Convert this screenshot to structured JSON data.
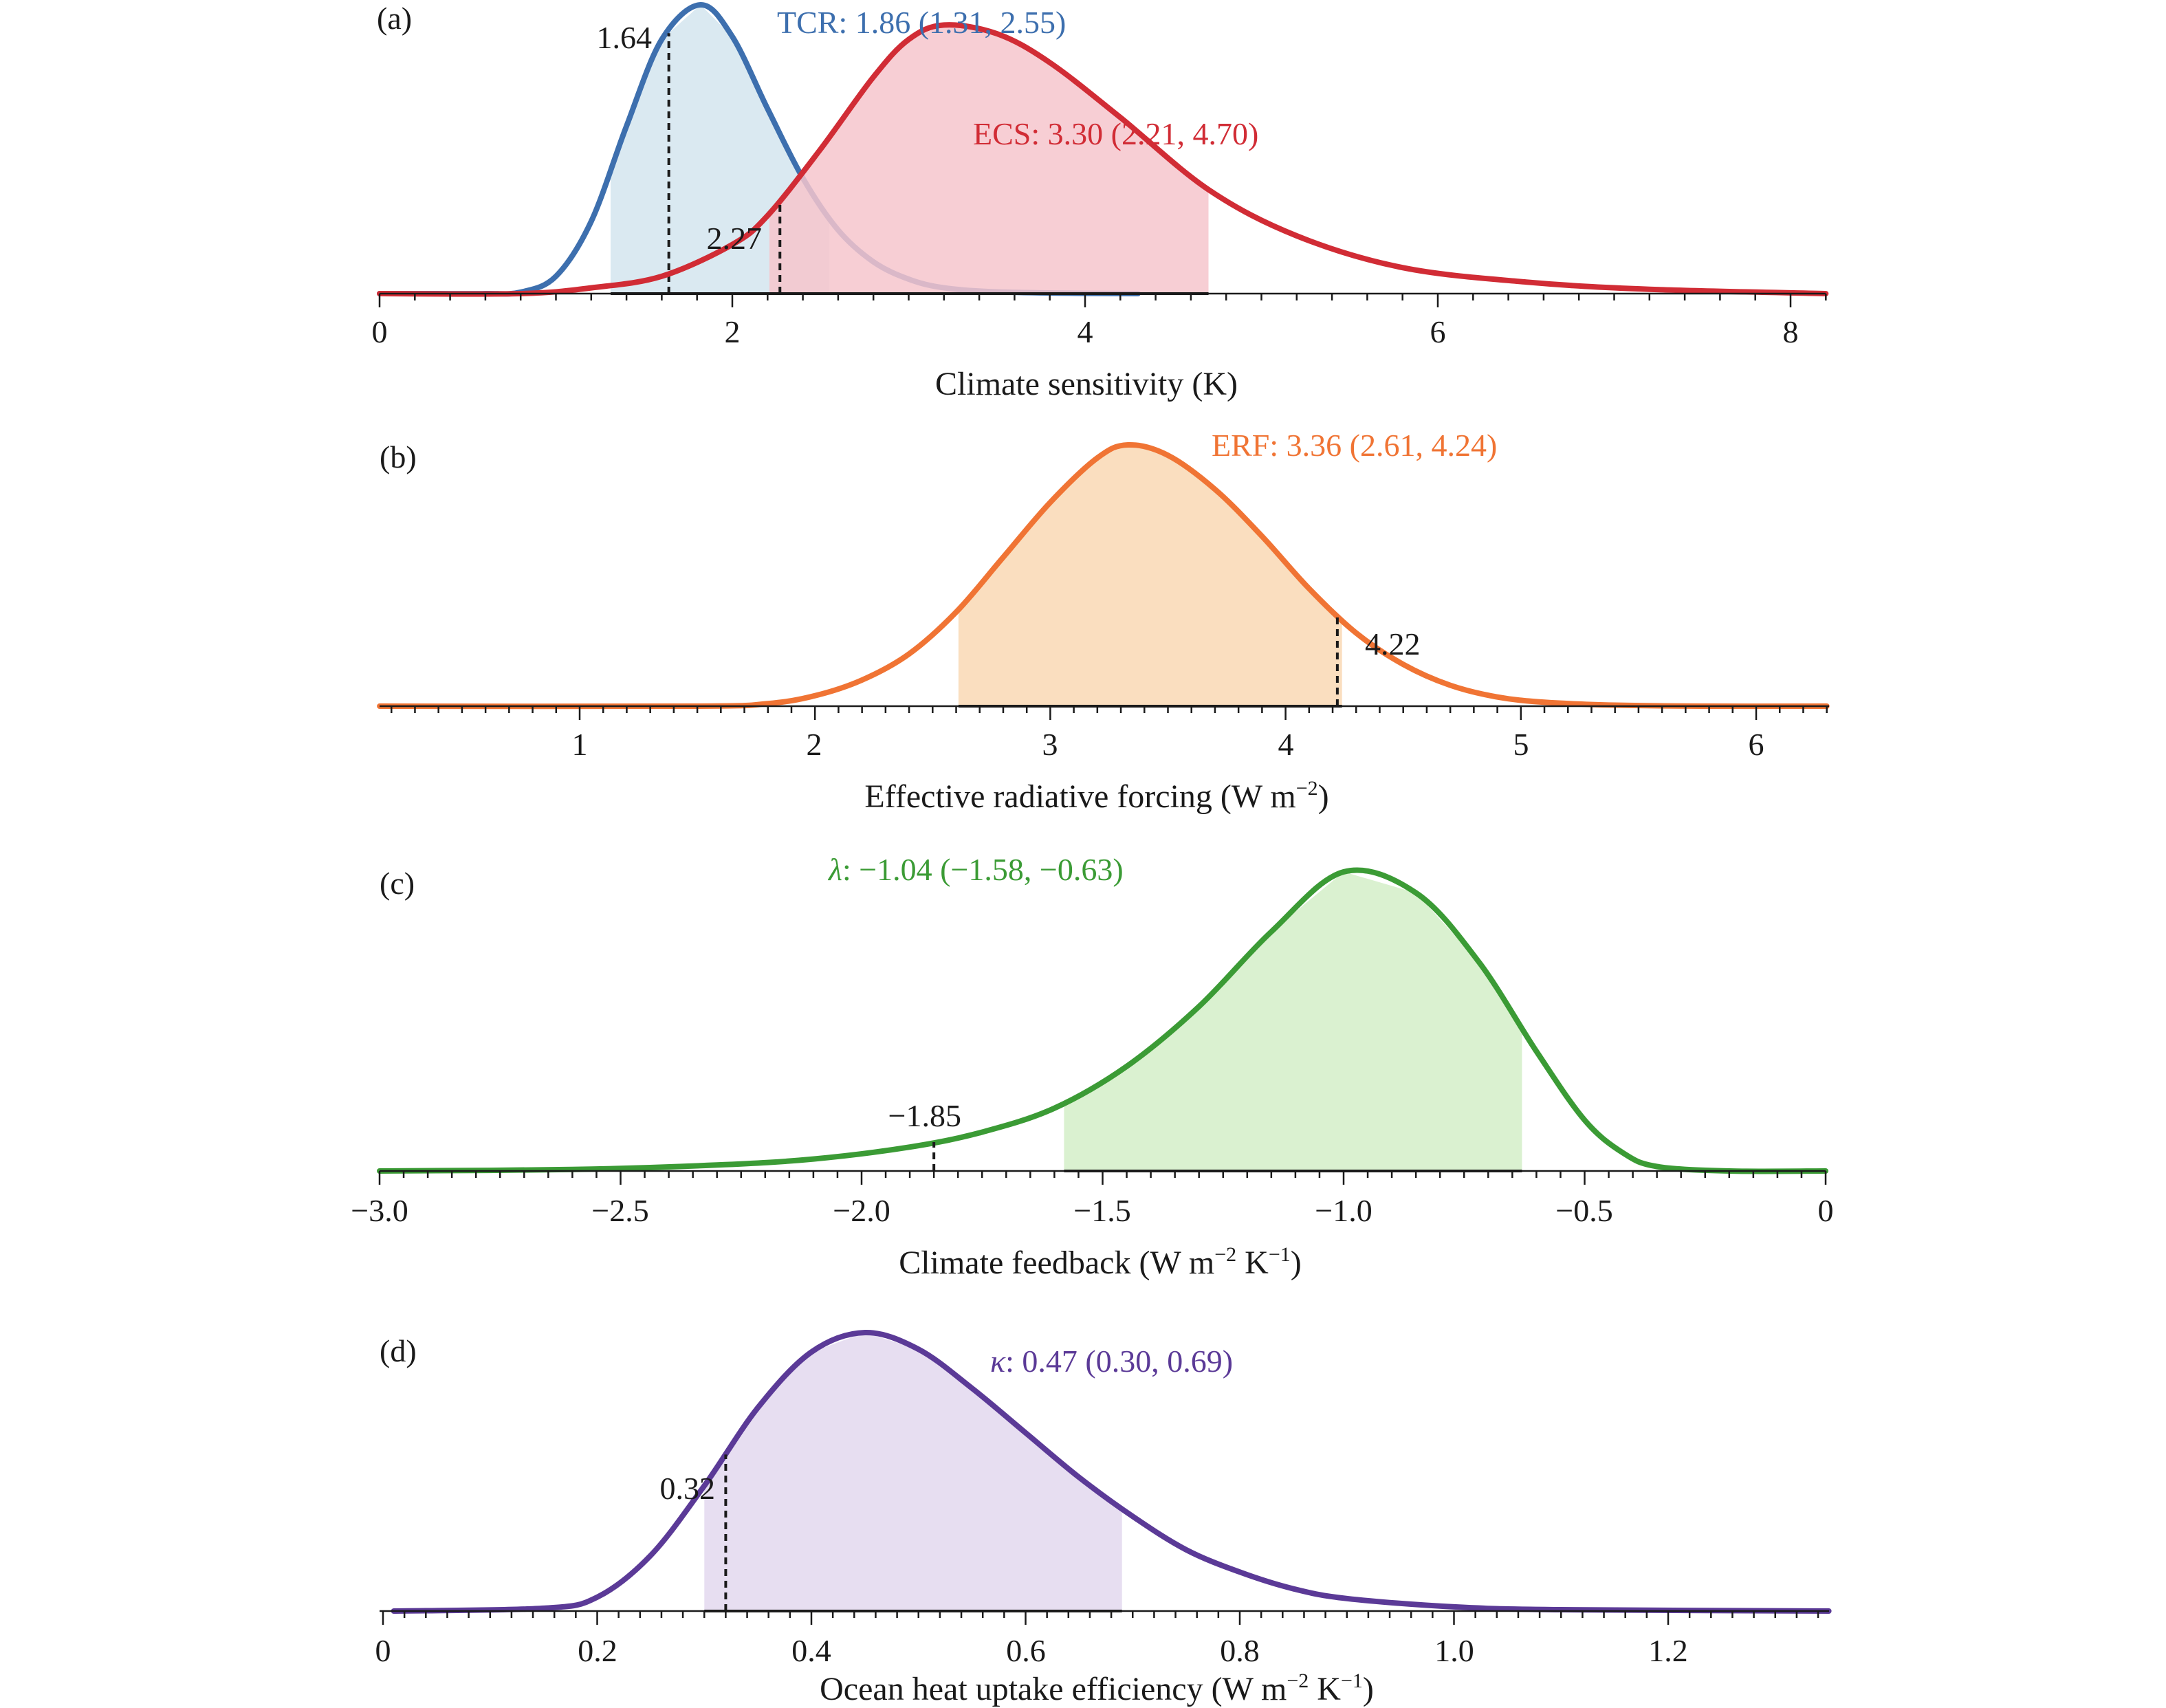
{
  "chart_data": [
    {
      "panel": "(a)",
      "type": "area",
      "xlabel": "Climate sensitivity (K)",
      "xlim": [
        0,
        8.2
      ],
      "ticks": [
        "0",
        "2",
        "4",
        "6",
        "8"
      ],
      "series": [
        {
          "name": "TCR",
          "summary": "TCR: 1.86 (1.31, 2.55)",
          "median": 1.86,
          "low": 1.31,
          "high": 2.55,
          "marker_value": 1.64,
          "marker_label": "1.64",
          "line_color": "#3d6fae",
          "fill_color": "#d4e5ee",
          "x": [
            0.0,
            0.3,
            0.6,
            0.8,
            1.0,
            1.2,
            1.4,
            1.6,
            1.82,
            2.0,
            2.2,
            2.4,
            2.6,
            2.8,
            3.0,
            3.2,
            3.5,
            4.0,
            4.3
          ],
          "y": [
            0.0,
            0.0,
            0.0,
            0.005,
            0.06,
            0.25,
            0.58,
            0.88,
            1.0,
            0.89,
            0.64,
            0.4,
            0.22,
            0.11,
            0.05,
            0.02,
            0.006,
            0.001,
            0.0
          ]
        },
        {
          "name": "ECS",
          "summary": "ECS: 3.30 (2.21, 4.70)",
          "median": 3.3,
          "low": 2.21,
          "high": 4.7,
          "marker_value": 2.27,
          "marker_label": "2.27",
          "line_color": "#d12c35",
          "fill_color": "#f6c5cd",
          "x": [
            0.0,
            0.8,
            1.2,
            1.6,
            2.0,
            2.2,
            2.5,
            2.8,
            3.0,
            3.2,
            3.5,
            3.8,
            4.2,
            4.7,
            5.2,
            5.8,
            6.5,
            7.2,
            8.2
          ],
          "y": [
            0.0,
            0.0,
            0.02,
            0.06,
            0.17,
            0.27,
            0.5,
            0.75,
            0.88,
            0.93,
            0.9,
            0.8,
            0.61,
            0.36,
            0.2,
            0.09,
            0.04,
            0.015,
            0.0
          ]
        }
      ]
    },
    {
      "panel": "(b)",
      "type": "area",
      "xlabel": "Effective radiative forcing (W m",
      "xlabel_sup": "−2",
      "xlabel_end": ")",
      "xlim": [
        0.15,
        6.3
      ],
      "ticks": [
        "1",
        "2",
        "3",
        "4",
        "5",
        "6"
      ],
      "series": [
        {
          "name": "ERF",
          "summary": "ERF: 3.36 (2.61, 4.24)",
          "median": 3.36,
          "low": 2.61,
          "high": 4.24,
          "marker_value": 4.22,
          "marker_label": "4.22",
          "line_color": "#f07434",
          "fill_color": "#f9d8b4",
          "x": [
            0.15,
            1.5,
            1.8,
            2.0,
            2.2,
            2.4,
            2.6,
            2.8,
            3.0,
            3.2,
            3.33,
            3.5,
            3.7,
            3.9,
            4.1,
            4.3,
            4.5,
            4.7,
            4.9,
            5.1,
            5.4,
            5.8,
            6.3
          ],
          "y": [
            0.0,
            0.0,
            0.01,
            0.04,
            0.1,
            0.2,
            0.36,
            0.57,
            0.78,
            0.95,
            1.0,
            0.96,
            0.83,
            0.65,
            0.45,
            0.28,
            0.16,
            0.08,
            0.035,
            0.015,
            0.004,
            0.0,
            0.0
          ]
        }
      ]
    },
    {
      "panel": "(c)",
      "type": "area",
      "xlabel": "Climate feedback (W m",
      "xlabel_sup": "−2",
      "xlabel_mid": " K",
      "xlabel_sup2": "−1",
      "xlabel_end": ")",
      "xlim": [
        -3.0,
        0.0
      ],
      "ticks": [
        "−3.0",
        "−2.5",
        "−2.0",
        "−1.5",
        "−1.0",
        "−0.5",
        "0"
      ],
      "series": [
        {
          "name": "λ",
          "summary": "λ: −1.04 (−1.58, −0.63)",
          "summary_symbol": "λ",
          "summary_rest": ": −1.04 (−1.58, −0.63)",
          "median": -1.04,
          "low": -1.58,
          "high": -0.63,
          "marker_value": -1.85,
          "marker_label": "−1.85",
          "line_color": "#3b9b35",
          "fill_color": "#d4efc8",
          "x": [
            -3.0,
            -2.6,
            -2.3,
            -2.1,
            -1.9,
            -1.75,
            -1.6,
            -1.45,
            -1.3,
            -1.15,
            -1.0,
            -0.85,
            -0.72,
            -0.6,
            -0.5,
            -0.42,
            -0.35,
            -0.2,
            0.0
          ],
          "y": [
            0.0,
            0.005,
            0.02,
            0.04,
            0.08,
            0.13,
            0.21,
            0.35,
            0.55,
            0.8,
            1.0,
            0.93,
            0.7,
            0.4,
            0.17,
            0.06,
            0.015,
            0.0,
            0.0
          ]
        }
      ]
    },
    {
      "panel": "(d)",
      "type": "area",
      "xlabel": "Ocean heat uptake efficiency (W m",
      "xlabel_sup": "−2",
      "xlabel_mid": " K",
      "xlabel_sup2": "−1",
      "xlabel_end": ")",
      "xlim": [
        0.0,
        1.35
      ],
      "ticks": [
        "0",
        "0.2",
        "0.4",
        "0.6",
        "0.8",
        "1.0",
        "1.2"
      ],
      "series": [
        {
          "name": "κ",
          "summary": "κ: 0.47 (0.30, 0.69)",
          "summary_symbol": "κ",
          "summary_rest": ": 0.47 (0.30, 0.69)",
          "median": 0.47,
          "low": 0.3,
          "high": 0.69,
          "marker_value": 0.32,
          "marker_label": "0.32",
          "line_color": "#5b3a97",
          "fill_color": "#e3d8ee",
          "x": [
            0.01,
            0.15,
            0.2,
            0.25,
            0.3,
            0.35,
            0.4,
            0.45,
            0.5,
            0.55,
            0.6,
            0.65,
            0.7,
            0.75,
            0.8,
            0.85,
            0.9,
            1.0,
            1.1,
            1.35
          ],
          "y": [
            0.0,
            0.01,
            0.05,
            0.2,
            0.45,
            0.73,
            0.93,
            1.0,
            0.94,
            0.8,
            0.64,
            0.48,
            0.34,
            0.22,
            0.14,
            0.08,
            0.045,
            0.015,
            0.005,
            0.0
          ]
        }
      ]
    }
  ]
}
